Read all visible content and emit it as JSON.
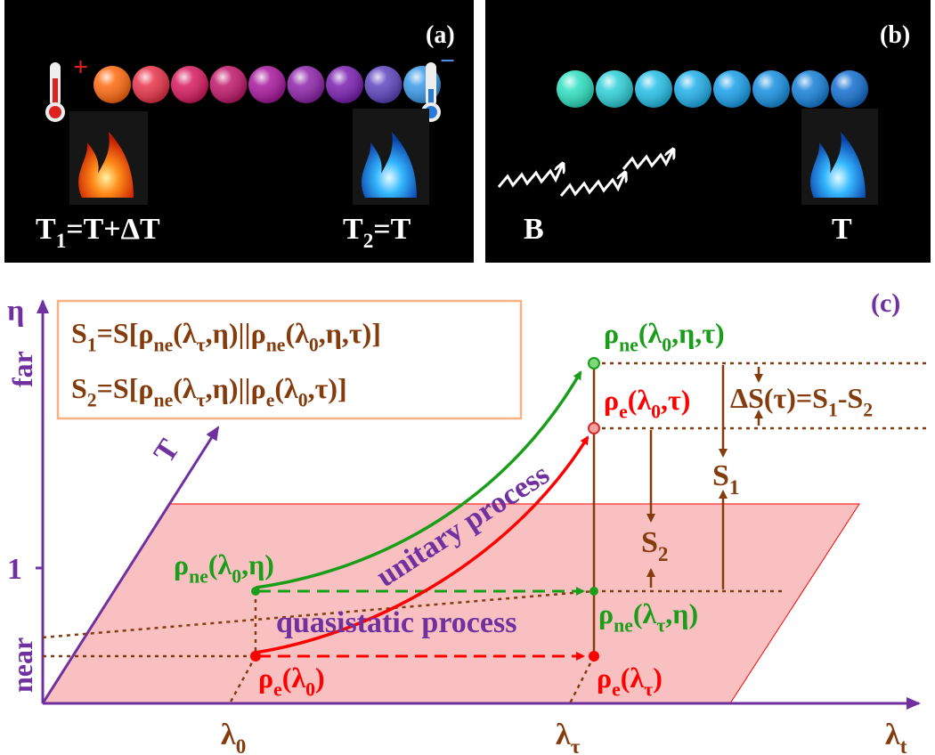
{
  "panel_a": {
    "label": "(a)",
    "hot_sign": "+",
    "cold_sign": "−",
    "hot_temp": [
      "T",
      "1",
      "=T+ΔT"
    ],
    "cold_temp": [
      "T",
      "2",
      "=T"
    ]
  },
  "panel_b": {
    "label": "(b)",
    "bath_B": "B",
    "bath_T": "T"
  },
  "panel_c": {
    "label": "(c)",
    "y_axis": "η",
    "y_far": "far",
    "y_one": "1",
    "y_near": "near",
    "t_axis": "T",
    "x_lambda0": [
      "λ",
      "0"
    ],
    "x_lambdatau": [
      "λ",
      "τ"
    ],
    "x_lambdat": [
      "λ",
      "t"
    ],
    "s1_def": [
      "S",
      "1",
      "=S[ρ",
      "ne",
      "(λ",
      "τ",
      ",η)||ρ",
      "ne",
      "(λ",
      "0",
      ",η,τ)]"
    ],
    "s2_def": [
      "S",
      "2",
      "=S[ρ",
      "ne",
      "(λ",
      "τ",
      ",η)||ρ",
      "e",
      "(λ",
      "0",
      ",τ)]"
    ],
    "rho_ne_l0_eta_tau": [
      "ρ",
      "ne",
      "(λ",
      "0",
      ",η,τ)"
    ],
    "rho_e_l0_tau": [
      "ρ",
      "e",
      "(λ",
      "0",
      ",τ)"
    ],
    "delta_s": [
      "ΔS(τ)=S",
      "1",
      "-S",
      "2"
    ],
    "s1": [
      "S",
      "1"
    ],
    "s2": [
      "S",
      "2"
    ],
    "unitary": "unitary process",
    "quasistatic": "quasistatic process",
    "rho_ne_l0_eta": [
      "ρ",
      "ne",
      "(λ",
      "0",
      ",η)"
    ],
    "rho_ne_ltau_eta": [
      "ρ",
      "ne",
      "(λ",
      "τ",
      ",η)"
    ],
    "rho_e_l0": [
      "ρ",
      "e",
      "(λ",
      "0",
      ")"
    ],
    "rho_e_ltau": [
      "ρ",
      "e",
      "(λ",
      "τ",
      ")"
    ]
  }
}
